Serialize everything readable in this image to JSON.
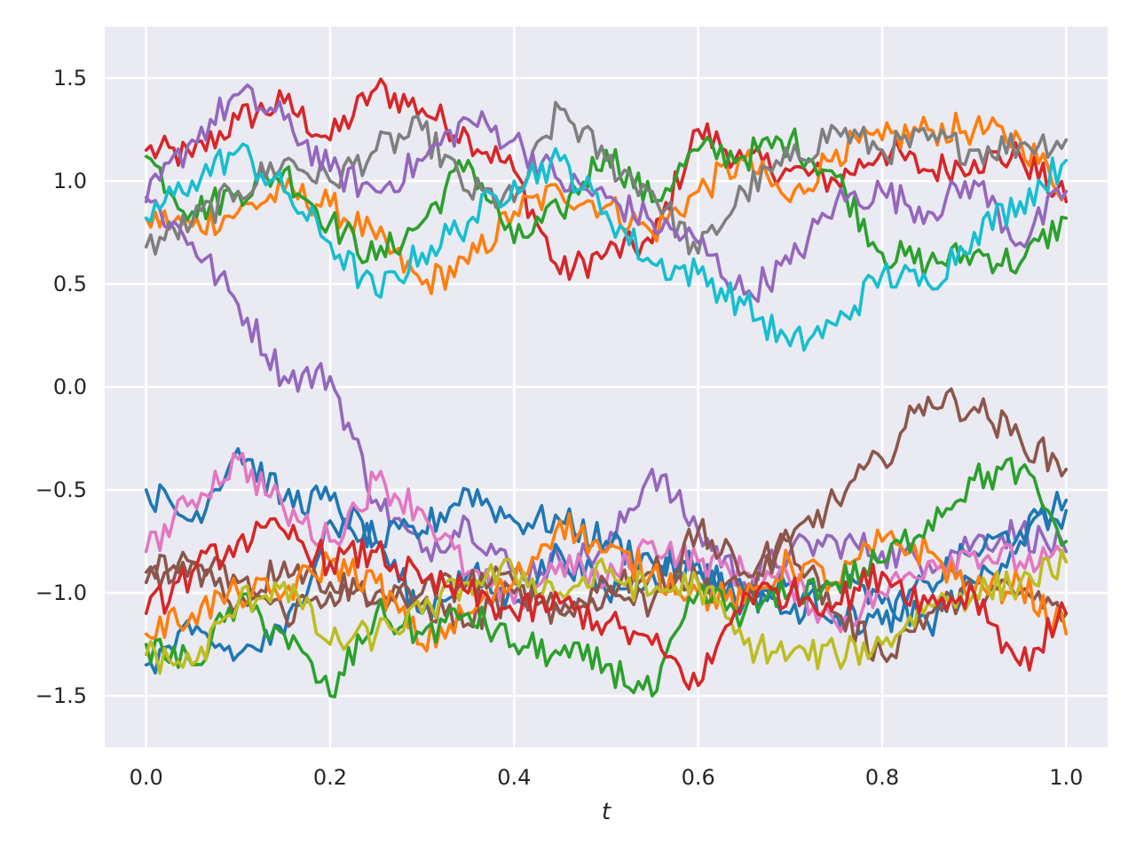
{
  "chart_data": {
    "type": "line",
    "title": "",
    "xlabel": "t",
    "ylabel": "",
    "xlim": [
      -0.045,
      1.045
    ],
    "ylim": [
      -1.75,
      1.75
    ],
    "x_ticks": [
      0.0,
      0.2,
      0.4,
      0.6,
      0.8,
      1.0
    ],
    "x_tick_labels": [
      "0.0",
      "0.2",
      "0.4",
      "0.6",
      "0.8",
      "1.0"
    ],
    "y_ticks": [
      -1.5,
      -1.0,
      -0.5,
      0.0,
      0.5,
      1.0,
      1.5
    ],
    "y_tick_labels": [
      "−1.5",
      "−1.0",
      "−0.5",
      "0.0",
      "0.5",
      "1.0",
      "1.5"
    ],
    "grid": true,
    "legend": "none",
    "background": "#eaeaf2",
    "x": [
      0.0,
      0.05,
      0.1,
      0.15,
      0.2,
      0.25,
      0.3,
      0.35,
      0.4,
      0.45,
      0.5,
      0.55,
      0.6,
      0.65,
      0.7,
      0.75,
      0.8,
      0.85,
      0.9,
      0.95,
      1.0
    ],
    "series": [
      {
        "color": "#d62728",
        "values": [
          1.15,
          1.12,
          1.3,
          1.38,
          1.2,
          1.45,
          1.35,
          1.22,
          1.05,
          0.55,
          0.65,
          0.7,
          1.25,
          1.1,
          1.05,
          1.0,
          1.15,
          1.05,
          1.1,
          1.12,
          0.9
        ]
      },
      {
        "color": "#ff7f0e",
        "values": [
          0.82,
          0.78,
          0.85,
          0.95,
          0.88,
          0.72,
          0.5,
          0.6,
          0.85,
          0.95,
          0.88,
          0.75,
          0.95,
          1.1,
          0.9,
          1.15,
          1.2,
          1.25,
          1.25,
          1.2,
          0.95
        ]
      },
      {
        "color": "#2ca02c",
        "values": [
          1.12,
          0.85,
          0.95,
          1.05,
          0.8,
          0.62,
          0.8,
          1.1,
          0.7,
          0.85,
          1.15,
          0.9,
          1.15,
          1.12,
          1.2,
          1.02,
          0.65,
          0.6,
          0.65,
          0.6,
          0.82
        ]
      },
      {
        "color": "#7f7f7f",
        "values": [
          0.68,
          0.8,
          0.95,
          1.1,
          1.0,
          1.15,
          1.25,
          0.95,
          0.9,
          1.35,
          1.1,
          0.95,
          0.65,
          0.95,
          1.1,
          1.25,
          1.15,
          1.2,
          1.15,
          1.18,
          1.2
        ]
      },
      {
        "color": "#9467bd",
        "values": [
          0.92,
          0.7,
          0.4,
          0.05,
          0.05,
          -0.55,
          -0.8,
          -0.65,
          -0.9,
          -0.85,
          -0.8,
          -0.4,
          -0.7,
          -0.95,
          -0.8,
          -0.75,
          -0.8,
          -0.85,
          -0.75,
          -0.7,
          -0.8
        ]
      },
      {
        "color": "#9467bd",
        "values": [
          0.9,
          1.2,
          1.42,
          1.3,
          1.05,
          0.95,
          1.1,
          1.3,
          1.2,
          1.0,
          0.92,
          0.8,
          0.7,
          0.45,
          0.6,
          0.9,
          0.95,
          0.85,
          1.0,
          0.7,
          0.95
        ]
      },
      {
        "color": "#17becf",
        "values": [
          0.82,
          1.0,
          1.15,
          0.95,
          0.7,
          0.45,
          0.65,
          0.8,
          1.0,
          1.1,
          0.85,
          0.6,
          0.55,
          0.4,
          0.2,
          0.3,
          0.55,
          0.5,
          0.75,
          0.9,
          1.1
        ]
      },
      {
        "color": "#1f77b4",
        "values": [
          -0.5,
          -0.65,
          -0.3,
          -0.55,
          -0.55,
          -0.75,
          -0.7,
          -0.5,
          -0.65,
          -0.65,
          -0.75,
          -0.85,
          -0.9,
          -1.0,
          -1.1,
          -0.95,
          -1.05,
          -1.15,
          -0.95,
          -0.75,
          -0.55
        ]
      },
      {
        "color": "#1f77b4",
        "values": [
          -1.35,
          -1.2,
          -1.3,
          -1.2,
          -0.65,
          -0.75,
          -1.1,
          -0.9,
          -1.05,
          -0.8,
          -1.0,
          -0.9,
          -0.85,
          -1.05,
          -0.95,
          -1.1,
          -1.15,
          -0.95,
          -0.8,
          -0.7,
          -0.6
        ]
      },
      {
        "color": "#e377c2",
        "values": [
          -0.8,
          -0.55,
          -0.35,
          -0.6,
          -0.75,
          -0.45,
          -0.6,
          -0.9,
          -1.05,
          -0.85,
          -0.95,
          -0.75,
          -0.85,
          -0.9,
          -0.95,
          -1.15,
          -1.0,
          -0.85,
          -0.8,
          -0.85,
          -0.85
        ]
      },
      {
        "color": "#8c564b",
        "values": [
          -0.9,
          -0.85,
          -0.95,
          -1.1,
          -1.0,
          -1.05,
          -1.0,
          -0.95,
          -0.95,
          -1.1,
          -1.0,
          -1.05,
          -0.7,
          -0.9,
          -0.75,
          -1.1,
          -1.3,
          -1.1,
          -1.0,
          -1.0,
          -1.1
        ]
      },
      {
        "color": "#8c564b",
        "values": [
          -0.95,
          -0.85,
          -1.05,
          -0.85,
          -0.95,
          -1.0,
          -1.05,
          -1.15,
          -1.0,
          -1.1,
          -0.95,
          -0.9,
          -0.95,
          -1.0,
          -0.75,
          -0.55,
          -0.35,
          -0.05,
          -0.1,
          -0.25,
          -0.4
        ]
      },
      {
        "color": "#ff7f0e",
        "values": [
          -1.2,
          -1.1,
          -1.0,
          -1.0,
          -0.85,
          -0.95,
          -1.25,
          -1.1,
          -0.95,
          -0.65,
          -0.8,
          -0.9,
          -1.0,
          -1.05,
          -0.85,
          -0.95,
          -0.75,
          -0.8,
          -1.0,
          -0.95,
          -1.2
        ]
      },
      {
        "color": "#2ca02c",
        "values": [
          -1.25,
          -1.35,
          -1.05,
          -1.2,
          -1.5,
          -1.1,
          -1.2,
          -1.1,
          -1.25,
          -1.3,
          -1.35,
          -1.5,
          -1.0,
          -1.1,
          -1.0,
          -0.95,
          -0.85,
          -0.65,
          -0.45,
          -0.4,
          -0.75
        ]
      },
      {
        "color": "#bcbd22",
        "values": [
          -1.3,
          -1.35,
          -1.05,
          -0.95,
          -1.25,
          -1.2,
          -1.1,
          -0.95,
          -0.9,
          -1.0,
          -0.9,
          -1.0,
          -0.95,
          -1.25,
          -1.3,
          -1.3,
          -1.25,
          -1.05,
          -1.0,
          -0.95,
          -0.85
        ]
      },
      {
        "color": "#d62728",
        "values": [
          -1.1,
          -0.9,
          -0.75,
          -0.7,
          -0.85,
          -0.8,
          -0.95,
          -1.0,
          -1.1,
          -1.05,
          -1.15,
          -1.25,
          -1.45,
          -1.0,
          -1.0,
          -1.05,
          -0.9,
          -1.05,
          -1.0,
          -1.35,
          -1.1
        ]
      }
    ]
  }
}
